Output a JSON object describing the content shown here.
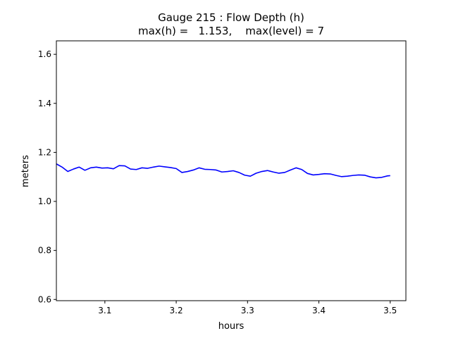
{
  "chart_data": {
    "type": "line",
    "title_line1": "Gauge 215 : Flow Depth (h)",
    "title_line2": "max(h) =   1.153,    max(level) = 7",
    "xlabel": "hours",
    "ylabel": "meters",
    "xlim": [
      3.032,
      3.522
    ],
    "ylim": [
      0.595,
      1.655
    ],
    "xticks": [
      3.1,
      3.2,
      3.3,
      3.4,
      3.5
    ],
    "xtick_labels": [
      "3.1",
      "3.2",
      "3.3",
      "3.4",
      "3.5"
    ],
    "yticks": [
      0.6,
      0.8,
      1.0,
      1.2,
      1.4,
      1.6
    ],
    "ytick_labels": [
      "0.6",
      "0.8",
      "1.0",
      "1.2",
      "1.4",
      "1.6"
    ],
    "grid": false,
    "series": [
      {
        "color": "#0000ff",
        "x": [
          3.032,
          3.04,
          3.048,
          3.056,
          3.064,
          3.072,
          3.08,
          3.088,
          3.096,
          3.104,
          3.112,
          3.12,
          3.128,
          3.136,
          3.144,
          3.152,
          3.16,
          3.168,
          3.176,
          3.184,
          3.192,
          3.2,
          3.208,
          3.216,
          3.224,
          3.232,
          3.24,
          3.248,
          3.256,
          3.264,
          3.272,
          3.28,
          3.288,
          3.296,
          3.304,
          3.312,
          3.32,
          3.328,
          3.336,
          3.344,
          3.352,
          3.36,
          3.368,
          3.376,
          3.384,
          3.392,
          3.4,
          3.408,
          3.416,
          3.424,
          3.432,
          3.44,
          3.448,
          3.456,
          3.464,
          3.472,
          3.48,
          3.488,
          3.496,
          3.5
        ],
        "y": [
          1.153,
          1.14,
          1.122,
          1.132,
          1.14,
          1.127,
          1.137,
          1.14,
          1.136,
          1.137,
          1.133,
          1.146,
          1.145,
          1.132,
          1.13,
          1.137,
          1.135,
          1.14,
          1.144,
          1.141,
          1.138,
          1.134,
          1.118,
          1.122,
          1.128,
          1.137,
          1.131,
          1.13,
          1.128,
          1.12,
          1.122,
          1.125,
          1.118,
          1.107,
          1.103,
          1.115,
          1.122,
          1.126,
          1.12,
          1.115,
          1.118,
          1.128,
          1.137,
          1.13,
          1.114,
          1.108,
          1.11,
          1.113,
          1.112,
          1.106,
          1.101,
          1.103,
          1.106,
          1.108,
          1.107,
          1.1,
          1.096,
          1.098,
          1.104,
          1.105
        ]
      }
    ]
  }
}
